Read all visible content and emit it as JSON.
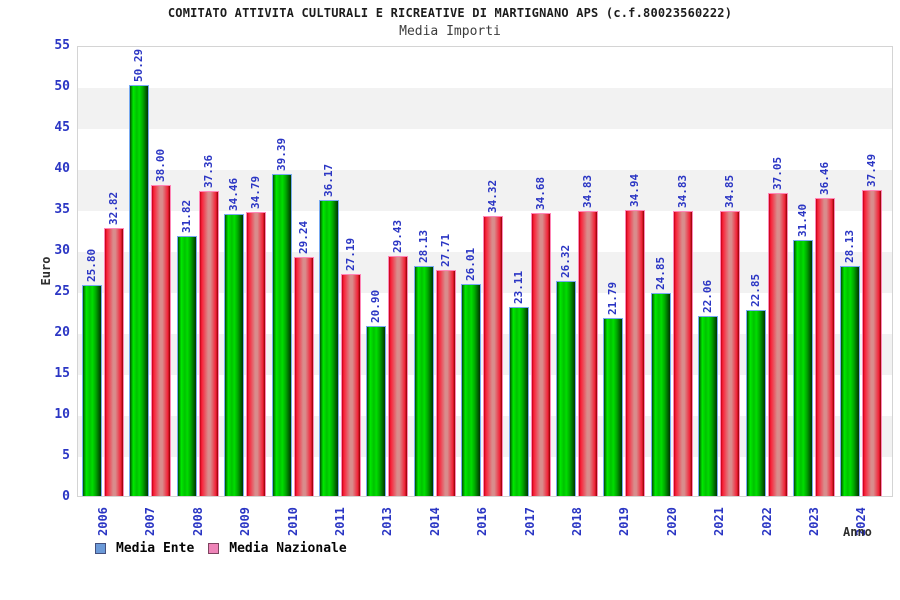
{
  "title": "COMITATO ATTIVITA CULTURALI E RICREATIVE DI MARTIGNANO APS (c.f.80023560222)",
  "subtitle": "Media Importi",
  "axes": {
    "ylabel": "Euro",
    "xlabel": "Anno"
  },
  "chart_data": {
    "type": "bar",
    "title": "Media Importi",
    "categories": [
      "2006",
      "2007",
      "2008",
      "2009",
      "2010",
      "2011",
      "2013",
      "2014",
      "2016",
      "2017",
      "2018",
      "2019",
      "2020",
      "2021",
      "2022",
      "2023",
      "2024"
    ],
    "series": [
      {
        "name": "Media Ente",
        "legend_swatch_color": "#6b9ad8",
        "bar_color": "green",
        "values": [
          25.8,
          50.29,
          31.82,
          34.46,
          39.39,
          36.17,
          20.9,
          28.13,
          26.01,
          23.11,
          26.32,
          21.79,
          24.85,
          22.06,
          22.85,
          31.4,
          28.13
        ]
      },
      {
        "name": "Media Nazionale",
        "legend_swatch_color": "#ee84b8",
        "bar_color": "red",
        "values": [
          32.82,
          38.0,
          37.36,
          34.79,
          29.24,
          27.19,
          29.43,
          27.71,
          34.32,
          34.68,
          34.83,
          34.94,
          34.83,
          34.85,
          37.05,
          36.46,
          37.49
        ]
      }
    ],
    "ylabel": "Euro",
    "xlabel": "Anno",
    "ylim": [
      0,
      55
    ],
    "ytick_step": 5,
    "grid": "horizontal-bands",
    "legend_position": "bottom-left",
    "value_label_color": "#2b36c4",
    "tick_label_color": "#2b36c4",
    "value_label_format": "2-decimals"
  }
}
